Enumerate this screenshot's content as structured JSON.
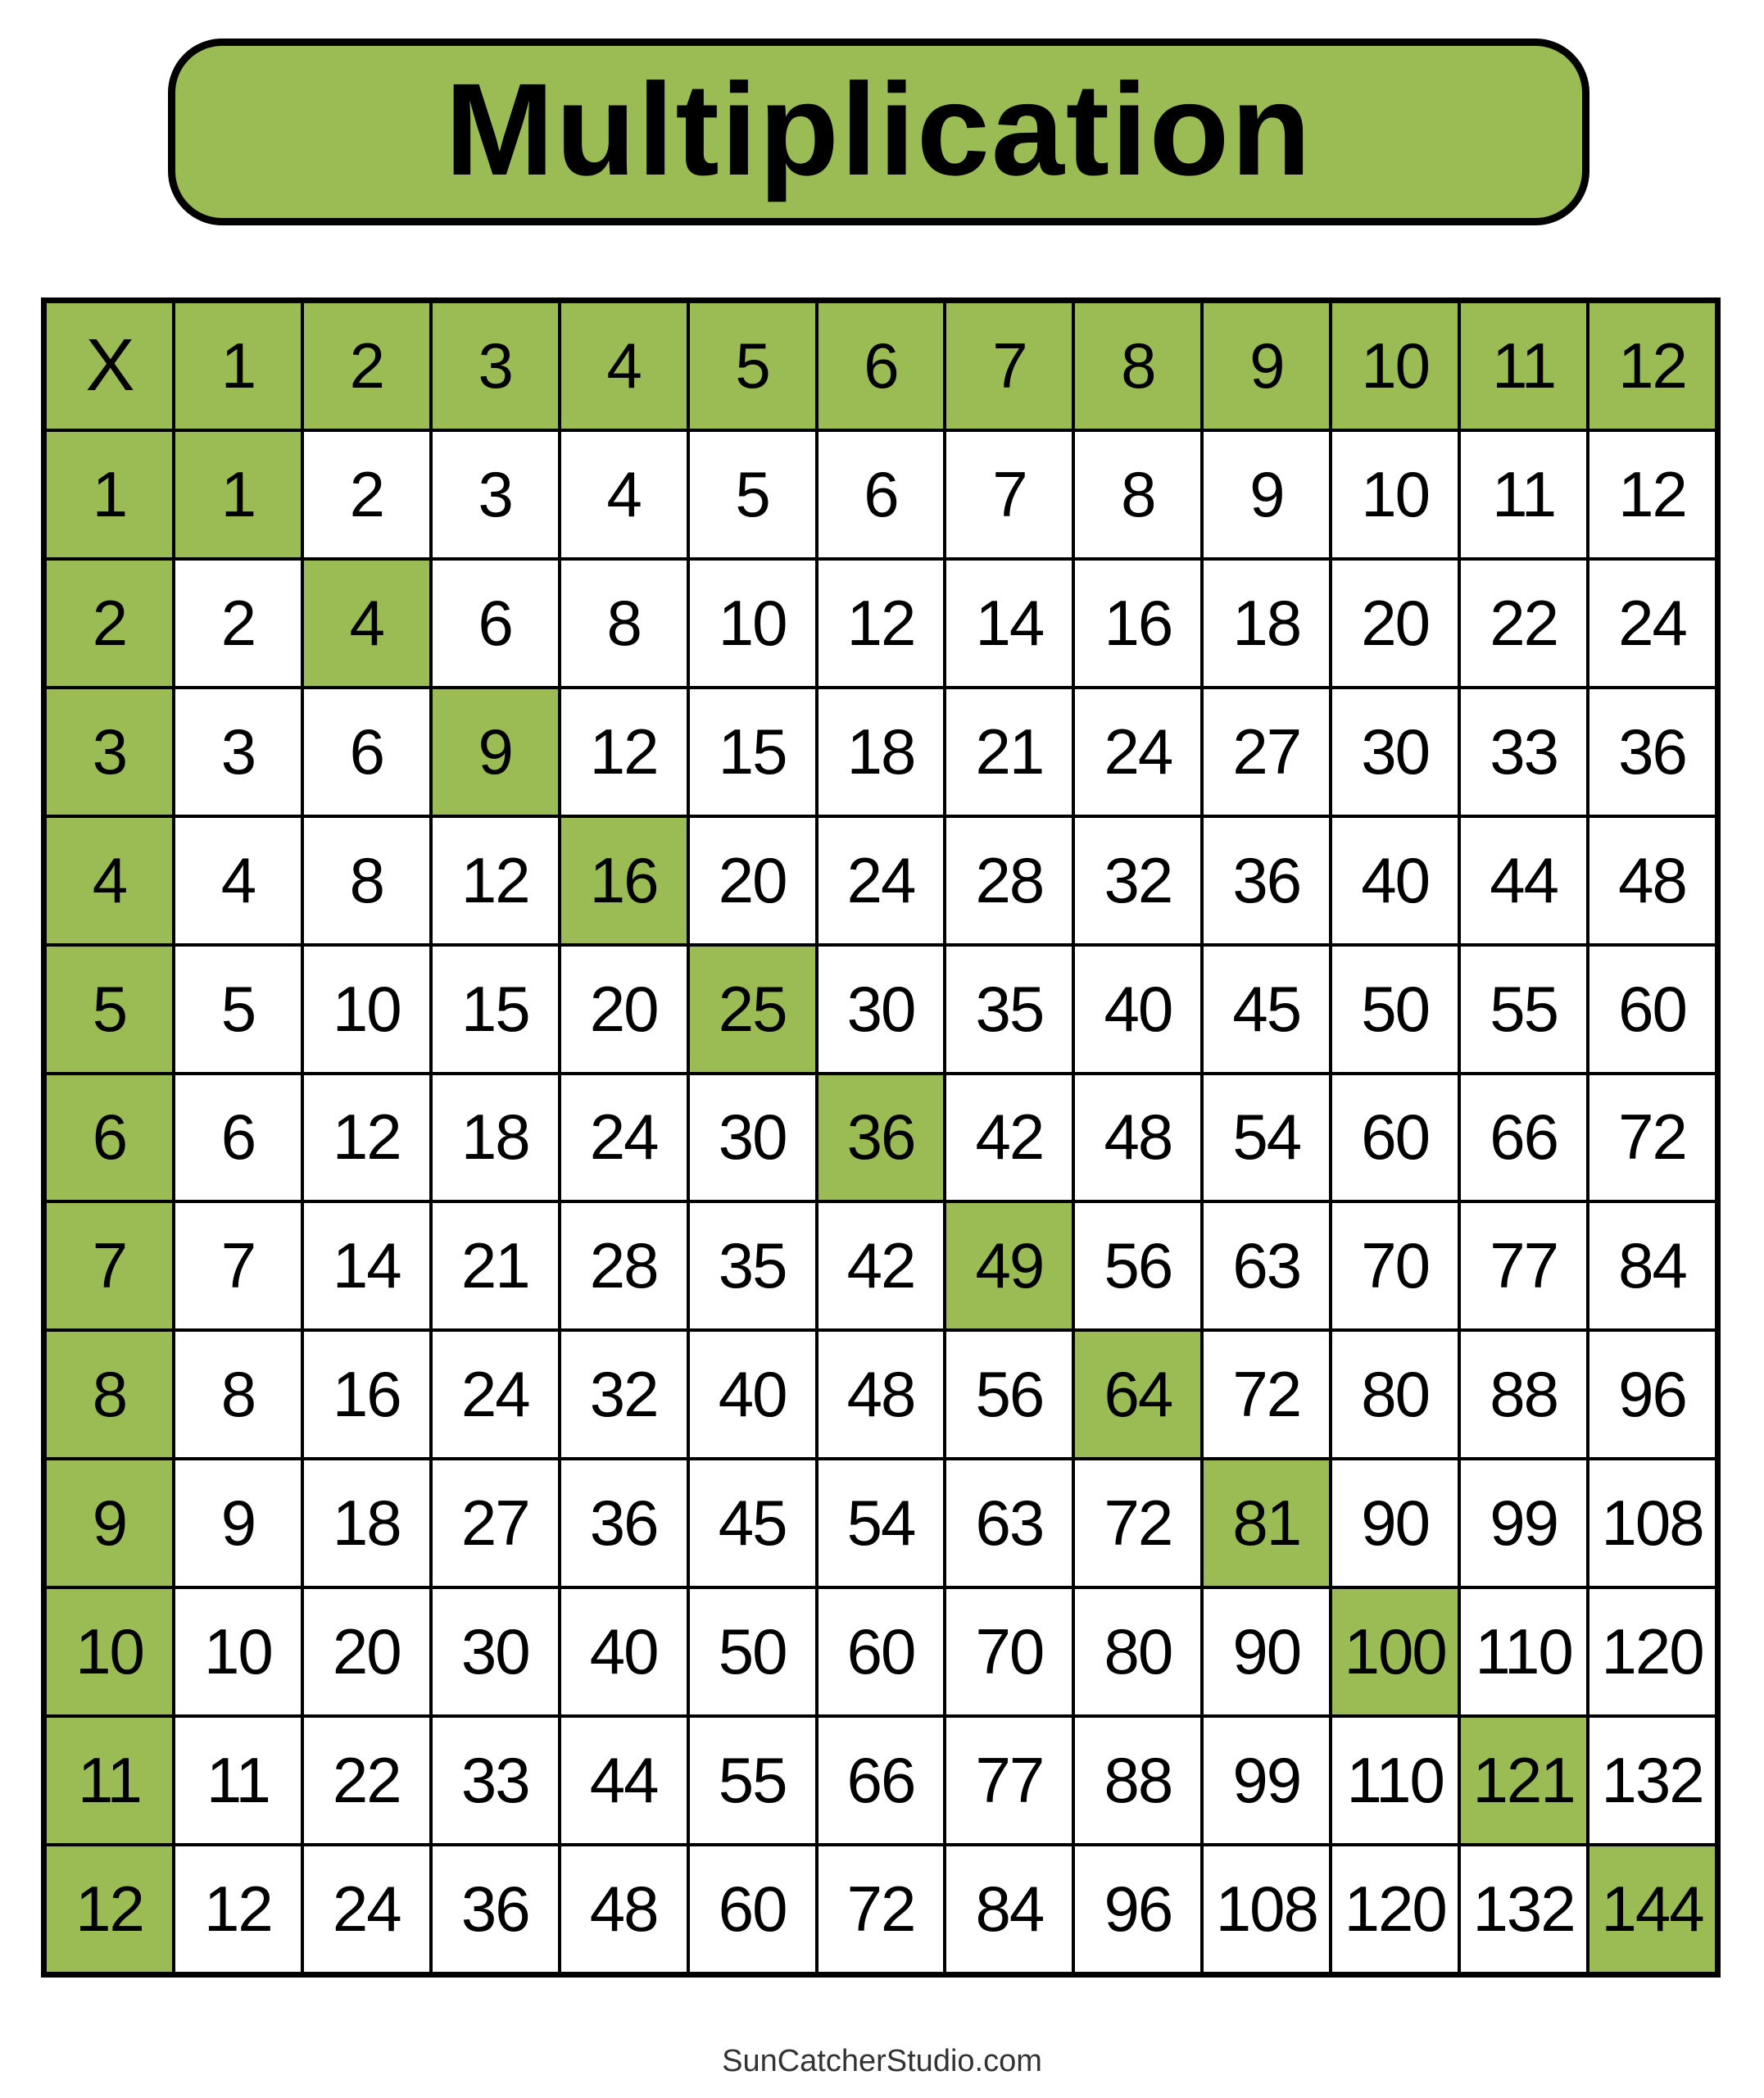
{
  "title": "Multiplication",
  "footer": "SunCatcherStudio.com",
  "colors": {
    "accent": "#9bbb54",
    "border": "#000000",
    "cell": "#ffffff"
  },
  "table": {
    "corner": "X",
    "column_headers": [
      "1",
      "2",
      "3",
      "4",
      "5",
      "6",
      "7",
      "8",
      "9",
      "10",
      "11",
      "12"
    ],
    "rows": [
      {
        "header": "1",
        "values": [
          "1",
          "2",
          "3",
          "4",
          "5",
          "6",
          "7",
          "8",
          "9",
          "10",
          "11",
          "12"
        ]
      },
      {
        "header": "2",
        "values": [
          "2",
          "4",
          "6",
          "8",
          "10",
          "12",
          "14",
          "16",
          "18",
          "20",
          "22",
          "24"
        ]
      },
      {
        "header": "3",
        "values": [
          "3",
          "6",
          "9",
          "12",
          "15",
          "18",
          "21",
          "24",
          "27",
          "30",
          "33",
          "36"
        ]
      },
      {
        "header": "4",
        "values": [
          "4",
          "8",
          "12",
          "16",
          "20",
          "24",
          "28",
          "32",
          "36",
          "40",
          "44",
          "48"
        ]
      },
      {
        "header": "5",
        "values": [
          "5",
          "10",
          "15",
          "20",
          "25",
          "30",
          "35",
          "40",
          "45",
          "50",
          "55",
          "60"
        ]
      },
      {
        "header": "6",
        "values": [
          "6",
          "12",
          "18",
          "24",
          "30",
          "36",
          "42",
          "48",
          "54",
          "60",
          "66",
          "72"
        ]
      },
      {
        "header": "7",
        "values": [
          "7",
          "14",
          "21",
          "28",
          "35",
          "42",
          "49",
          "56",
          "63",
          "70",
          "77",
          "84"
        ]
      },
      {
        "header": "8",
        "values": [
          "8",
          "16",
          "24",
          "32",
          "40",
          "48",
          "56",
          "64",
          "72",
          "80",
          "88",
          "96"
        ]
      },
      {
        "header": "9",
        "values": [
          "9",
          "18",
          "27",
          "36",
          "45",
          "54",
          "63",
          "72",
          "81",
          "90",
          "99",
          "108"
        ]
      },
      {
        "header": "10",
        "values": [
          "10",
          "20",
          "30",
          "40",
          "50",
          "60",
          "70",
          "80",
          "90",
          "100",
          "110",
          "120"
        ]
      },
      {
        "header": "11",
        "values": [
          "11",
          "22",
          "33",
          "44",
          "55",
          "66",
          "77",
          "88",
          "99",
          "110",
          "121",
          "132"
        ]
      },
      {
        "header": "12",
        "values": [
          "12",
          "24",
          "36",
          "48",
          "60",
          "72",
          "84",
          "96",
          "108",
          "120",
          "132",
          "144"
        ]
      }
    ],
    "highlight": "diagonal"
  }
}
